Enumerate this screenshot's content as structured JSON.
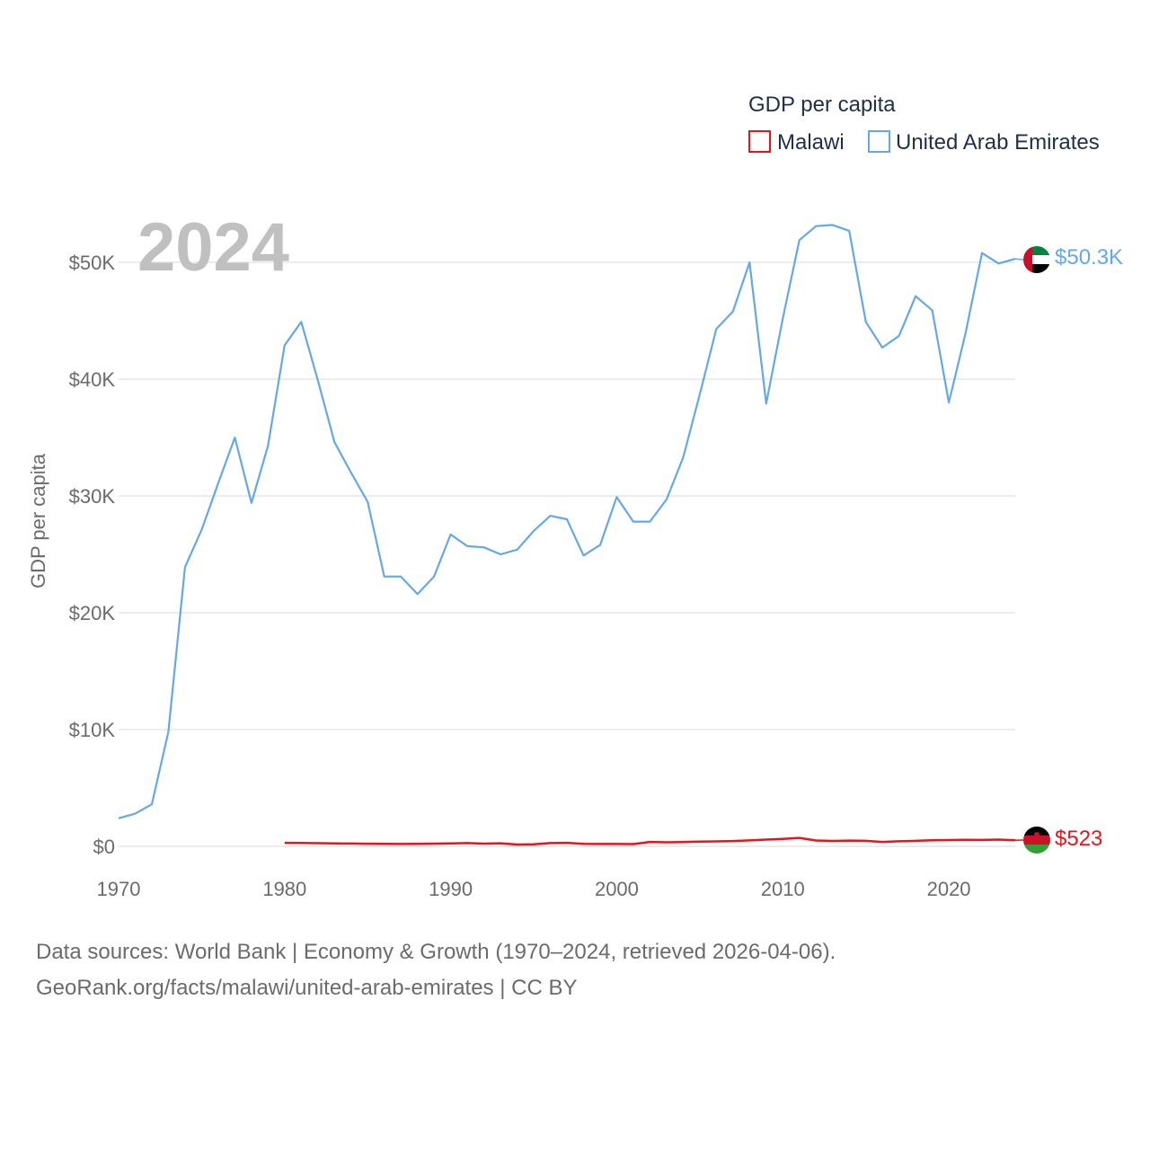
{
  "chart_data": {
    "type": "line",
    "title": "GDP per capita",
    "ylabel": "GDP per capita",
    "year_label": "2024",
    "xlim": [
      1970,
      2024
    ],
    "ylim": [
      0,
      53000
    ],
    "x_ticks": [
      1970,
      1980,
      1990,
      2000,
      2010,
      2020
    ],
    "x_tick_labels": [
      "1970",
      "1980",
      "1990",
      "2000",
      "2010",
      "2020"
    ],
    "y_ticks": [
      0,
      10000,
      20000,
      30000,
      40000,
      50000
    ],
    "y_tick_labels": [
      "$0",
      "$10K",
      "$20K",
      "$30K",
      "$40K",
      "$50K"
    ],
    "legend": {
      "title": "GDP per capita",
      "placement": "top-right"
    },
    "series": [
      {
        "name": "Malawi",
        "color": "#e8141b",
        "end_label": "$523",
        "flag": "malawi-flag",
        "x": [
          1980,
          1981,
          1982,
          1983,
          1984,
          1985,
          1986,
          1987,
          1988,
          1989,
          1990,
          1991,
          1992,
          1993,
          1994,
          1995,
          1996,
          1997,
          1998,
          1999,
          2000,
          2001,
          2002,
          2003,
          2004,
          2005,
          2006,
          2007,
          2008,
          2009,
          2010,
          2011,
          2012,
          2013,
          2014,
          2015,
          2016,
          2017,
          2018,
          2019,
          2020,
          2021,
          2022,
          2023,
          2024
        ],
        "values": [
          300,
          290,
          270,
          250,
          240,
          220,
          210,
          200,
          210,
          230,
          250,
          280,
          230,
          260,
          150,
          170,
          280,
          300,
          210,
          200,
          200,
          190,
          380,
          350,
          370,
          400,
          420,
          450,
          510,
          580,
          640,
          720,
          500,
          460,
          490,
          470,
          380,
          430,
          470,
          520,
          540,
          560,
          550,
          580,
          523
        ]
      },
      {
        "name": "United Arab Emirates",
        "color": "#64a8e8",
        "end_label": "$50.3K",
        "flag": "uae-flag",
        "x": [
          1970,
          1971,
          1972,
          1973,
          1974,
          1975,
          1976,
          1977,
          1978,
          1979,
          1980,
          1981,
          1982,
          1983,
          1984,
          1985,
          1986,
          1987,
          1988,
          1989,
          1990,
          1991,
          1992,
          1993,
          1994,
          1995,
          1996,
          1997,
          1998,
          1999,
          2000,
          2001,
          2002,
          2003,
          2004,
          2005,
          2006,
          2007,
          2008,
          2009,
          2010,
          2011,
          2012,
          2013,
          2014,
          2015,
          2016,
          2017,
          2018,
          2019,
          2020,
          2021,
          2022,
          2023,
          2024
        ],
        "values": [
          2400,
          2800,
          3600,
          9800,
          23900,
          27100,
          31100,
          35000,
          29400,
          34300,
          42900,
          44900,
          39900,
          34600,
          32000,
          29500,
          23100,
          23100,
          21600,
          23100,
          26700,
          25700,
          25600,
          25000,
          25400,
          27000,
          28300,
          28000,
          24900,
          25800,
          29900,
          27800,
          27800,
          29700,
          33300,
          38700,
          44300,
          45800,
          50000,
          37900,
          45200,
          51900,
          53100,
          53200,
          52700,
          44900,
          42700,
          43700,
          47100,
          45900,
          38000,
          43900,
          50800,
          49900,
          50300
        ]
      }
    ]
  },
  "footer": {
    "line1": "Data sources: World Bank | Economy & Growth (1970–2024, retrieved 2026-04-06).",
    "line2": "GeoRank.org/facts/malawi/united-arab-emirates | CC BY"
  }
}
